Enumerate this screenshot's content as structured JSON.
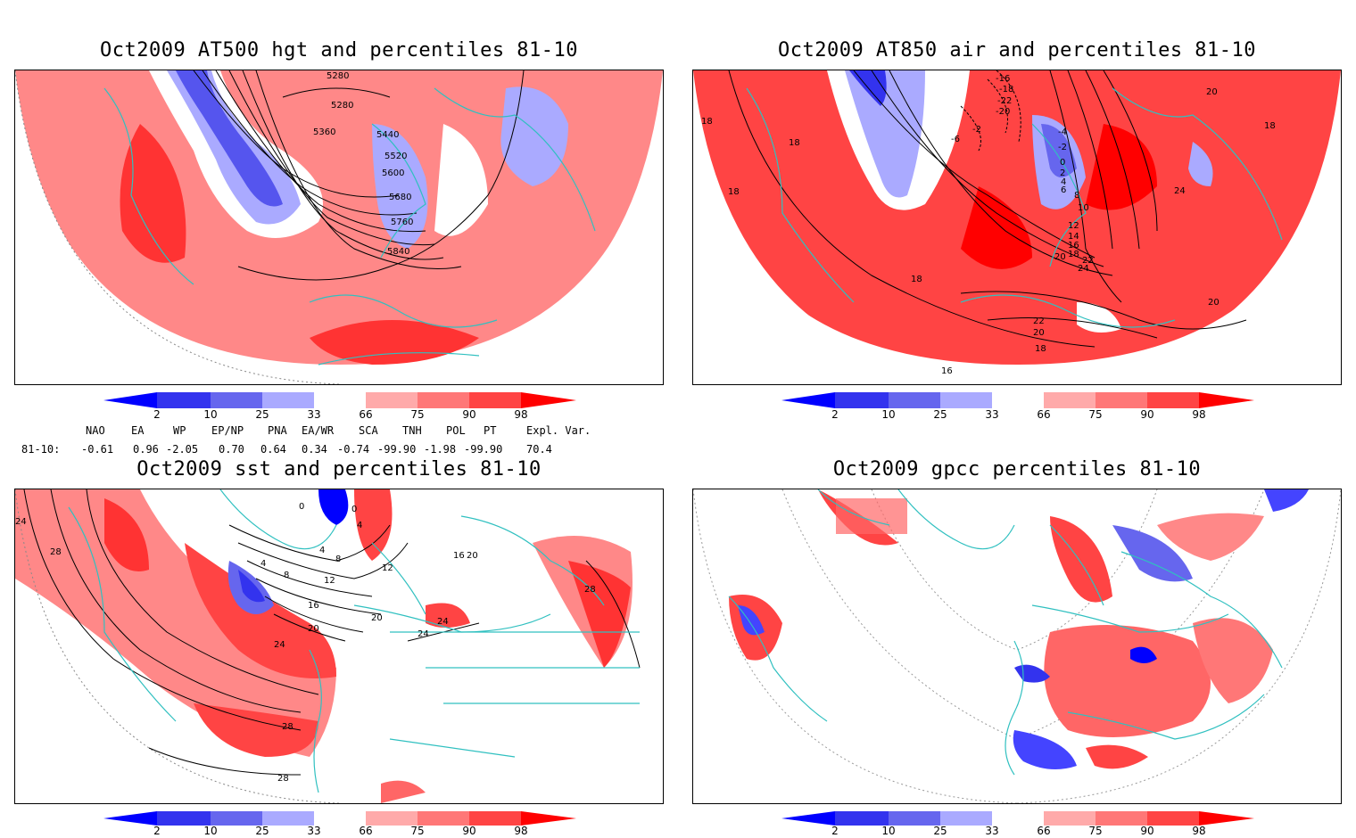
{
  "panels": {
    "p1": {
      "title": "Oct2009 AT500 hgt and percentiles 81-10",
      "contours": [
        "5280",
        "5280",
        "5360",
        "5440",
        "5520",
        "5600",
        "5680",
        "5760",
        "5840"
      ]
    },
    "p2": {
      "title": "Oct2009 AT850 air and percentiles 81-10",
      "contours": [
        "-16",
        "-18",
        "-22",
        "-20",
        "-6",
        "-2",
        "-4",
        "-2",
        "0",
        "2",
        "4",
        "6",
        "8",
        "10",
        "12",
        "14",
        "16",
        "18",
        "20",
        "22",
        "24",
        "20",
        "24",
        "18",
        "18",
        "18",
        "18",
        "18",
        "22",
        "20",
        "18",
        "20",
        "16"
      ]
    },
    "p3": {
      "title": "Oct2009 sst and percentiles 81-10",
      "contours": [
        "24",
        "28",
        "0",
        "0",
        "4",
        "4",
        "8",
        "4",
        "8",
        "12",
        "12",
        "16",
        "16",
        "20",
        "20",
        "20",
        "24",
        "24",
        "24",
        "28",
        "28",
        "28"
      ]
    },
    "p4": {
      "title": "Oct2009 gpcc percentiles 81-10"
    }
  },
  "colorbar": {
    "labels": [
      "2",
      "10",
      "25",
      "33",
      "66",
      "75",
      "90",
      "98"
    ],
    "colors": {
      "b2": "#0000ff",
      "b10": "#3333ee",
      "b25": "#6666ee",
      "b33": "#aaaaff",
      "r66": "#ffaaaa",
      "r75": "#ff7777",
      "r90": "#ff4444",
      "r98": "#ff0000"
    }
  },
  "indices": {
    "header": [
      "NAO",
      "EA",
      "WP",
      "EP/NP",
      "PNA",
      "EA/WR",
      "SCA",
      "TNH",
      "POL",
      "PT",
      "Expl. Var."
    ],
    "row_label": "81-10:",
    "values": [
      "-0.61",
      "0.96",
      "-2.05",
      "0.70",
      "0.64",
      "0.34",
      "-0.74",
      "-99.90",
      "-1.98",
      "-99.90",
      "70.4"
    ]
  },
  "map_colors": {
    "coast": "#30c0c0",
    "contour": "#000000"
  }
}
